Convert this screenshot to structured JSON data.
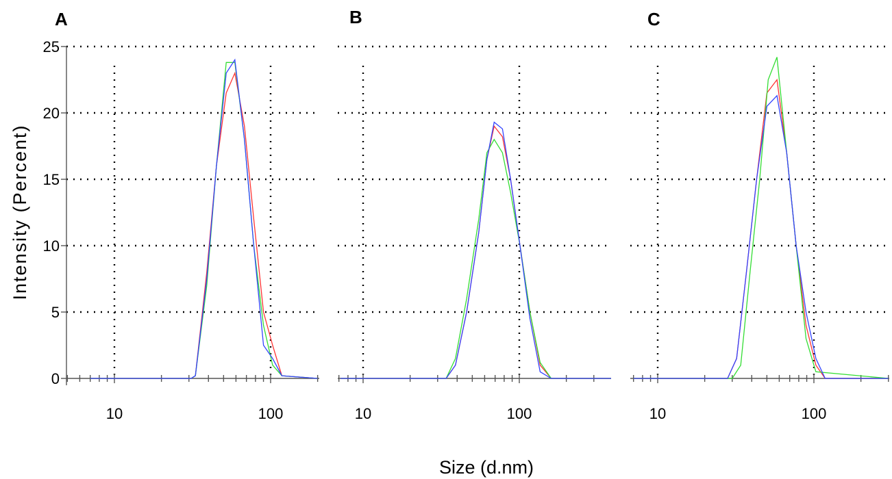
{
  "chart_data": [
    {
      "panel": "A",
      "type": "line",
      "x_scale": "log",
      "xlim": [
        5,
        200
      ],
      "ylim": [
        0,
        25
      ],
      "x_ticks": [
        10,
        100
      ],
      "y_ticks": [
        0,
        5,
        10,
        15,
        20,
        25
      ],
      "series": [
        {
          "color": "#ff3333",
          "x": [
            7,
            31,
            33,
            39,
            45,
            52,
            59,
            68,
            78,
            90,
            103,
            118,
            200
          ],
          "y": [
            0,
            0,
            0.2,
            8,
            16,
            21.5,
            23,
            19,
            12,
            5,
            2.5,
            0.2,
            0
          ]
        },
        {
          "color": "#33dd33",
          "x": [
            7,
            31,
            33,
            39,
            45,
            52,
            59,
            68,
            78,
            90,
            103,
            118,
            200
          ],
          "y": [
            0,
            0,
            0.2,
            7,
            16,
            23.8,
            23.8,
            18,
            10,
            4,
            1,
            0.2,
            0
          ]
        },
        {
          "color": "#3344ff",
          "x": [
            7,
            31,
            33,
            39,
            45,
            52,
            59,
            68,
            78,
            90,
            103,
            118,
            200
          ],
          "y": [
            0,
            0,
            0.2,
            7.5,
            16,
            23,
            24,
            18,
            10,
            2.5,
            1.5,
            0.2,
            0
          ]
        }
      ]
    },
    {
      "panel": "B",
      "type": "line",
      "x_scale": "log",
      "xlim": [
        5,
        400
      ],
      "ylim": [
        0,
        25
      ],
      "x_ticks": [
        10,
        100
      ],
      "y_ticks": [
        0,
        5,
        10,
        15,
        20,
        25
      ],
      "series": [
        {
          "color": "#ff3333",
          "x": [
            3.5,
            34,
            39,
            46,
            55,
            62,
            69,
            78,
            88,
            101,
            117,
            136,
            160,
            400
          ],
          "y": [
            0,
            0,
            1,
            5,
            11,
            16.5,
            19,
            18.2,
            15,
            10,
            5,
            1,
            0,
            0
          ]
        },
        {
          "color": "#33dd33",
          "x": [
            3.5,
            34,
            39,
            46,
            55,
            62,
            69,
            78,
            88,
            101,
            117,
            136,
            160,
            400
          ],
          "y": [
            0,
            0,
            1.5,
            6,
            12,
            17,
            18,
            17,
            14,
            10,
            5,
            1.2,
            0,
            0
          ]
        },
        {
          "color": "#3344ff",
          "x": [
            3.5,
            34,
            39,
            46,
            55,
            62,
            69,
            78,
            88,
            101,
            117,
            136,
            160,
            400
          ],
          "y": [
            0,
            0,
            1,
            5,
            11,
            16.5,
            19.3,
            18.8,
            15,
            10,
            4.5,
            0.5,
            0,
            0
          ]
        }
      ]
    },
    {
      "panel": "C",
      "type": "line",
      "x_scale": "log",
      "xlim": [
        5,
        300
      ],
      "ylim": [
        0,
        25
      ],
      "x_ticks": [
        10,
        100
      ],
      "y_ticks": [
        0,
        5,
        10,
        15,
        20,
        25
      ],
      "series": [
        {
          "color": "#ff3333",
          "x": [
            7,
            28,
            32,
            37,
            43,
            50,
            58,
            67,
            77,
            89,
            103,
            118,
            300
          ],
          "y": [
            0,
            0,
            1.5,
            8,
            15,
            21.5,
            22.5,
            17,
            10,
            4,
            1,
            0,
            0
          ]
        },
        {
          "color": "#33dd33",
          "x": [
            7,
            30,
            34,
            39,
            45,
            51,
            58,
            67,
            77,
            89,
            103,
            300
          ],
          "y": [
            0,
            0,
            1,
            8,
            15,
            22.5,
            24.2,
            17,
            10,
            3,
            0.5,
            0
          ]
        },
        {
          "color": "#3344ff",
          "x": [
            7,
            28,
            32,
            37,
            43,
            50,
            58,
            67,
            77,
            89,
            103,
            118,
            300
          ],
          "y": [
            0,
            0,
            1.5,
            8,
            15,
            20.5,
            21.3,
            17,
            10,
            5,
            1.5,
            0,
            0
          ]
        }
      ]
    }
  ],
  "labels": {
    "panel_a": "A",
    "panel_b": "B",
    "panel_c": "C",
    "y_axis_title": "Intensity (Percent)",
    "x_axis_title": "Size (d.nm)",
    "x_tick_10": "10",
    "x_tick_100": "100",
    "y_ticks": [
      "0",
      "5",
      "10",
      "15",
      "20",
      "25"
    ]
  }
}
